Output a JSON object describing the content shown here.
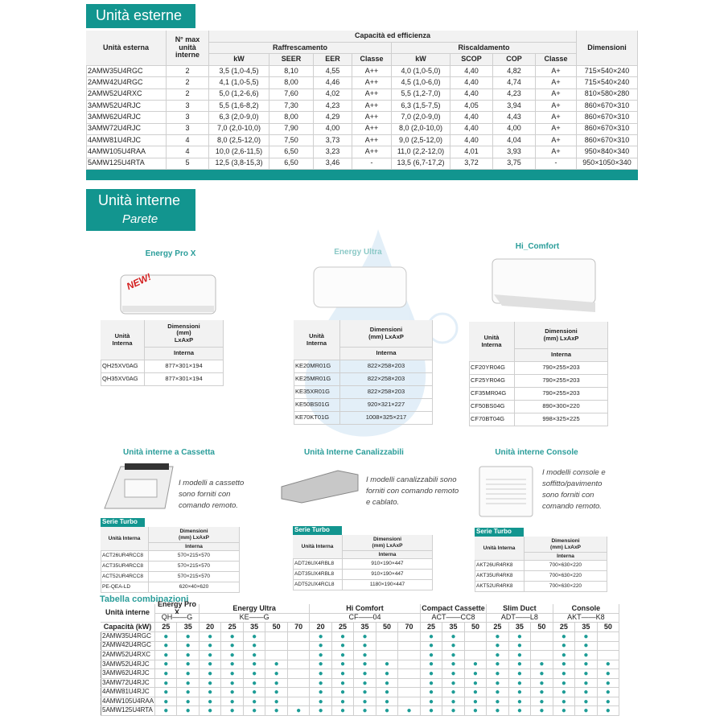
{
  "esterne": {
    "title": "Unità esterne",
    "header": {
      "unit": "Unità esterna",
      "max": "N° max unità interne",
      "capacity": "Capacità ed efficienza",
      "cooling": "Raffrescamento",
      "heating": "Riscaldamento",
      "dims": "Dimensioni",
      "cool_cols": [
        "kW",
        "SEER",
        "EER",
        "Classe"
      ],
      "heat_cols": [
        "kW",
        "SCOP",
        "COP",
        "Classe"
      ]
    },
    "rows": [
      [
        "2AMW35U4RGC",
        2,
        "3,5 (1,0-4,5)",
        "8,10",
        "4,55",
        "A++",
        "4,0 (1,0-5,0)",
        "4,40",
        "4,82",
        "A+",
        "715×540×240"
      ],
      [
        "2AMW42U4RGC",
        2,
        "4,1 (1,0-5,5)",
        "8,00",
        "4,46",
        "A++",
        "4,5 (1,0-6,0)",
        "4,40",
        "4,74",
        "A+",
        "715×540×240"
      ],
      [
        "2AMW52U4RXC",
        2,
        "5,0 (1,2-6,6)",
        "7,60",
        "4,02",
        "A++",
        "5,5 (1,2-7,0)",
        "4,40",
        "4,23",
        "A+",
        "810×580×280"
      ],
      [
        "3AMW52U4RJC",
        3,
        "5,5 (1,6-8,2)",
        "7,30",
        "4,23",
        "A++",
        "6,3 (1,5-7,5)",
        "4,05",
        "3,94",
        "A+",
        "860×670×310"
      ],
      [
        "3AMW62U4RJC",
        3,
        "6,3 (2,0-9,0)",
        "8,00",
        "4,29",
        "A++",
        "7,0 (2,0-9,0)",
        "4,40",
        "4,43",
        "A+",
        "860×670×310"
      ],
      [
        "3AMW72U4RJC",
        3,
        "7,0 (2,0-10,0)",
        "7,90",
        "4,00",
        "A++",
        "8,0 (2,0-10,0)",
        "4,40",
        "4,00",
        "A+",
        "860×670×310"
      ],
      [
        "4AMW81U4RJC",
        4,
        "8,0 (2,5-12,0)",
        "7,50",
        "3,73",
        "A++",
        "9,0 (2,5-12,0)",
        "4,40",
        "4,04",
        "A+",
        "860×670×310"
      ],
      [
        "4AMW105U4RAA",
        4,
        "10,0 (2,6-11,5)",
        "6,50",
        "3,23",
        "A++",
        "11,0 (2,2-12,0)",
        "4,01",
        "3,93",
        "A+",
        "950×840×340"
      ],
      [
        "5AMW125U4RTA",
        5,
        "12,5 (3,8-15,3)",
        "6,50",
        "3,46",
        "-",
        "13,5 (6,7-17,2)",
        "3,72",
        "3,75",
        "-",
        "950×1050×340"
      ]
    ]
  },
  "interne": {
    "title": "Unità interne",
    "subtitle": "Parete"
  },
  "parete": [
    {
      "name": "Energy Pro X",
      "badge": "NEW!",
      "header": {
        "unit": "Unità Interna",
        "dims": "Dimensioni (mm) LxAxP",
        "sub": "Interna"
      },
      "rows": [
        [
          "QH25XV0AG",
          "877×301×194"
        ],
        [
          "QH35XV0AG",
          "877×301×194"
        ]
      ]
    },
    {
      "name": "Energy Ultra",
      "header": {
        "unit": "Unità Interna",
        "dims": "Dimensioni (mm) LxAxP",
        "sub": "Interna"
      },
      "rows": [
        [
          "KE20MR01G",
          "822×258×203"
        ],
        [
          "KE25MR01G",
          "822×258×203"
        ],
        [
          "KE35XR01G",
          "822×258×203"
        ],
        [
          "KE50BS01G",
          "920×321×227"
        ],
        [
          "KE70KT01G",
          "1008×325×217"
        ]
      ]
    },
    {
      "name": "Hi_Comfort",
      "header": {
        "unit": "Unità Interna",
        "dims": "Dimensioni (mm) LxAxP",
        "sub": "Interna"
      },
      "rows": [
        [
          "CF20YR04G",
          "790×255×203"
        ],
        [
          "CF25YR04G",
          "790×255×203"
        ],
        [
          "CF35MR04G",
          "790×255×203"
        ],
        [
          "CF50BS04G",
          "890×300×220"
        ],
        [
          "CF70BT04G",
          "998×325×225"
        ]
      ]
    }
  ],
  "altre": [
    {
      "name": "Unità interne a Cassetta",
      "description": "I modelli a cassetto sono forniti con comando remoto.",
      "series": "Serie Turbo",
      "header": {
        "unit": "Unità Interna",
        "dims": "Dimensioni (mm) LxAxP",
        "sub": "Interna"
      },
      "rows": [
        [
          "ACT26UR4RCC8",
          "570×215×570"
        ],
        [
          "ACT35UR4RCC8",
          "570×215×570"
        ],
        [
          "ACT52UR4RCC8",
          "570×215×570"
        ],
        [
          "PE-QEA-LD",
          "620×40×620"
        ]
      ]
    },
    {
      "name": "Unità Interne Canalizzabili",
      "description": "I modelli canalizzabili sono forniti con comando remoto e cablato.",
      "series": "Serie Turbo",
      "header": {
        "unit": "Unità Interna",
        "dims": "Dimensioni (mm) LxAxP",
        "sub": "Interna"
      },
      "rows": [
        [
          "ADT26UX4RBL8",
          "910×190×447"
        ],
        [
          "ADT35UX4RBL8",
          "910×190×447"
        ],
        [
          "ADT52UX4RCL8",
          "1180×190×447"
        ]
      ]
    },
    {
      "name": "Unità interne Console",
      "description": "I modelli console e soffitto/pavimento sono forniti con comando remoto.",
      "series": "Serie Turbo",
      "header": {
        "unit": "Unità Interna",
        "dims": "Dimensioni (mm) LxAxP",
        "sub": "Interna"
      },
      "rows": [
        [
          "AKT26UR4RK8",
          "700×630×220"
        ],
        [
          "AKT35UR4RK8",
          "700×630×220"
        ],
        [
          "AKT52UR4RK8",
          "700×630×220"
        ]
      ]
    }
  ],
  "combinazioni": {
    "title": "Tabella combinazioni",
    "unit_header": "Unità interne",
    "capacity_label": "Capacità (kW)",
    "groups": [
      {
        "name": "Energy Pro X",
        "code": "QH——G",
        "capacities": [
          25,
          35
        ]
      },
      {
        "name": "Energy Ultra",
        "code": "KE——G",
        "capacities": [
          20,
          25,
          35,
          50,
          70
        ]
      },
      {
        "name": "Hi Comfort",
        "code": "CF——04",
        "capacities": [
          20,
          25,
          35,
          50,
          70
        ]
      },
      {
        "name": "Compact Cassette",
        "code": "ACT——CC8",
        "capacities": [
          25,
          35,
          50
        ]
      },
      {
        "name": "Slim Duct",
        "code": "ADT——L8",
        "capacities": [
          25,
          35,
          50
        ]
      },
      {
        "name": "Console",
        "code": "AKT——K8",
        "capacities": [
          25,
          35,
          50
        ]
      }
    ],
    "rows": [
      {
        "unit": "2AMW35U4RGC",
        "cells": [
          "●",
          "●",
          "●",
          "●",
          "●",
          null,
          null,
          "●",
          "●",
          "●",
          null,
          null,
          "●",
          "●",
          null,
          "●",
          "●",
          null,
          "●",
          "●",
          null
        ]
      },
      {
        "unit": "2AMW42U4RGC",
        "cells": [
          "●",
          "●",
          "●",
          "●",
          "●",
          null,
          null,
          "●",
          "●",
          "●",
          null,
          null,
          "●",
          "●",
          null,
          "●",
          "●",
          null,
          "●",
          "●",
          null
        ]
      },
      {
        "unit": "2AMW52U4RXC",
        "cells": [
          "●",
          "●",
          "●",
          "●",
          "●",
          null,
          null,
          "●",
          "●",
          "●",
          null,
          null,
          "●",
          "●",
          null,
          "●",
          "●",
          null,
          "●",
          "●",
          null
        ]
      },
      {
        "unit": "3AMW52U4RJC",
        "cells": [
          "●",
          "●",
          "●",
          "●",
          "●",
          "●",
          null,
          "●",
          "●",
          "●",
          "●",
          null,
          "●",
          "●",
          "●",
          "●",
          "●",
          "●",
          "●",
          "●",
          "●"
        ]
      },
      {
        "unit": "3AMW62U4RJC",
        "cells": [
          "●",
          "●",
          "●",
          "●",
          "●",
          "●",
          null,
          "●",
          "●",
          "●",
          "●",
          null,
          "●",
          "●",
          "●",
          "●",
          "●",
          "●",
          "●",
          "●",
          "●"
        ]
      },
      {
        "unit": "3AMW72U4RJC",
        "cells": [
          "●",
          "●",
          "●",
          "●",
          "●",
          "●",
          null,
          "●",
          "●",
          "●",
          "●",
          null,
          "●",
          "●",
          "●",
          "●",
          "●",
          "●",
          "●",
          "●",
          "●"
        ]
      },
      {
        "unit": "4AMW81U4RJC",
        "cells": [
          "●",
          "●",
          "●",
          "●",
          "●",
          "●",
          null,
          "●",
          "●",
          "●",
          "●",
          null,
          "●",
          "●",
          "●",
          "●",
          "●",
          "●",
          "●",
          "●",
          "●"
        ]
      },
      {
        "unit": "4AMW105U4RAA",
        "cells": [
          "●",
          "●",
          "●",
          "●",
          "●",
          "●",
          null,
          "●",
          "●",
          "●",
          "●",
          null,
          "●",
          "●",
          "●",
          "●",
          "●",
          "●",
          "●",
          "●",
          "●"
        ]
      },
      {
        "unit": "5AMW125U4RTA",
        "cells": [
          "●",
          "●",
          "●",
          "●",
          "●",
          "●",
          "●",
          "●",
          "●",
          "●",
          "●",
          "●",
          "●",
          "●",
          "●",
          "●",
          "●",
          "●",
          "●",
          "●",
          "●"
        ]
      }
    ]
  }
}
